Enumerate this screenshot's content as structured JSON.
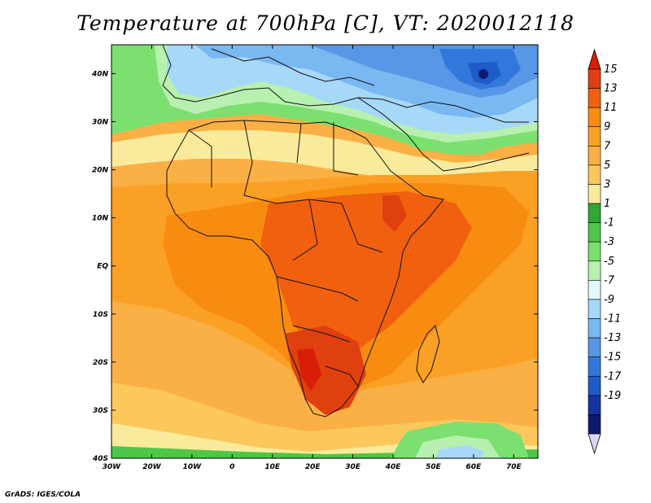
{
  "title": "Temperature at 700hPa [C], VT: 2020012118",
  "credit": "GrADS: IGES/COLA",
  "map": {
    "lon_range": [
      -30,
      76
    ],
    "lat_range": [
      -40,
      46
    ],
    "lon_ticks": [
      {
        "value": -30,
        "label": "30W"
      },
      {
        "value": -20,
        "label": "20W"
      },
      {
        "value": -10,
        "label": "10W"
      },
      {
        "value": 0,
        "label": "0"
      },
      {
        "value": 10,
        "label": "10E"
      },
      {
        "value": 20,
        "label": "20E"
      },
      {
        "value": 30,
        "label": "30E"
      },
      {
        "value": 40,
        "label": "40E"
      },
      {
        "value": 50,
        "label": "50E"
      },
      {
        "value": 60,
        "label": "60E"
      },
      {
        "value": 70,
        "label": "70E"
      }
    ],
    "lat_ticks": [
      {
        "value": 40,
        "label": "40N"
      },
      {
        "value": 30,
        "label": "30N"
      },
      {
        "value": 20,
        "label": "20N"
      },
      {
        "value": 10,
        "label": "10N"
      },
      {
        "value": 0,
        "label": "EQ"
      },
      {
        "value": -10,
        "label": "10S"
      },
      {
        "value": -20,
        "label": "20S"
      },
      {
        "value": -30,
        "label": "30S"
      },
      {
        "value": -40,
        "label": "40S"
      }
    ]
  },
  "colorbar": {
    "labels": [
      "15",
      "13",
      "11",
      "9",
      "7",
      "5",
      "3",
      "1",
      "-1",
      "-3",
      "-5",
      "-7",
      "-9",
      "-11",
      "-13",
      "-15",
      "-17",
      "-19"
    ],
    "colors_top_to_bottom": [
      "#e0400f",
      "#f0600f",
      "#f88c10",
      "#faa025",
      "#fab045",
      "#fcc85c",
      "#faeb9c",
      "#2ea832",
      "#4ec64a",
      "#7be070",
      "#b8f0b0",
      "#e2f8fa",
      "#a6d8f8",
      "#7ab8f2",
      "#5896e6",
      "#3278dc",
      "#1e5ac8",
      "#1234a0",
      "#0c1a70"
    ],
    "over_color": "#d81e06",
    "under_color": "#d8d8f8"
  }
}
